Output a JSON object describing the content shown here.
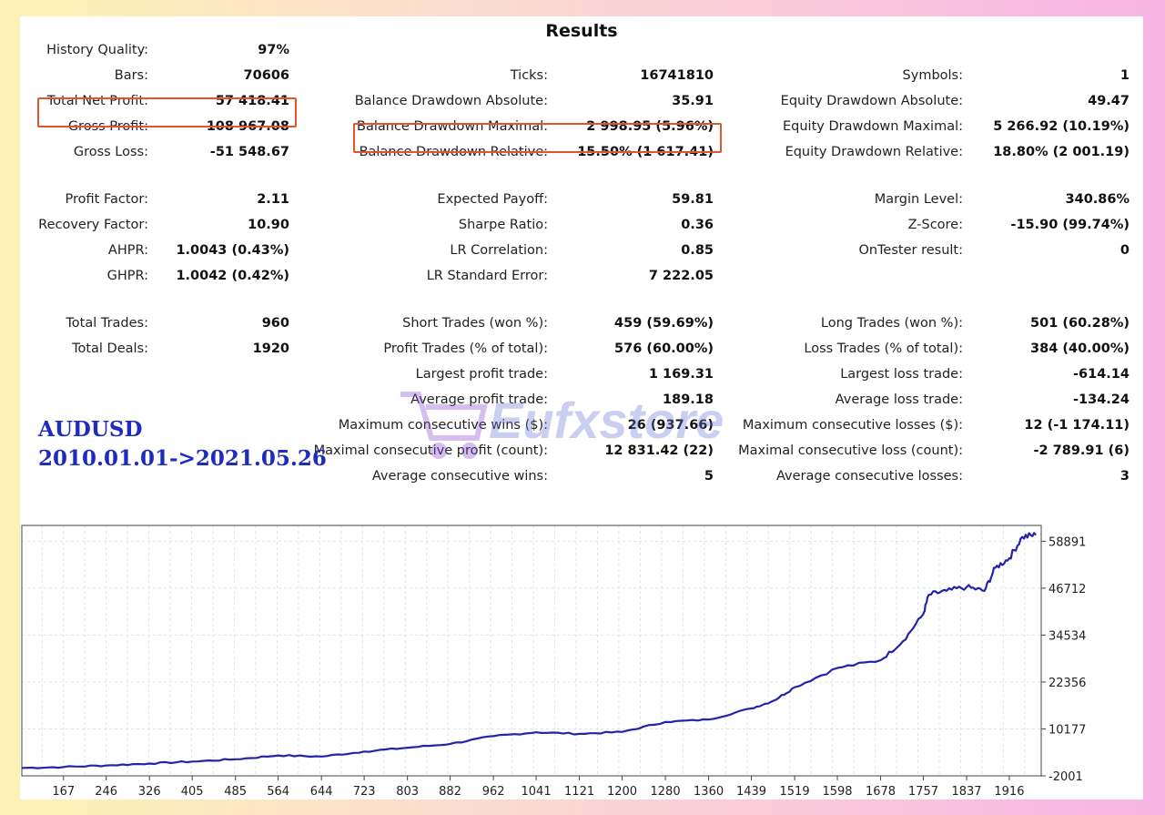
{
  "title": "Results",
  "col1": [
    {
      "label": "History Quality:",
      "value": "97%",
      "row": 0
    },
    {
      "label": "Bars:",
      "value": "70606",
      "row": 1
    },
    {
      "label": "Total Net Profit:",
      "value": "57 418.41",
      "row": 2
    },
    {
      "label": "Gross Profit:",
      "value": "108 967.08",
      "row": 3
    },
    {
      "label": "Gross Loss:",
      "value": "-51 548.67",
      "row": 4
    },
    {
      "label": "Profit Factor:",
      "value": "2.11",
      "row": 6
    },
    {
      "label": "Recovery Factor:",
      "value": "10.90",
      "row": 7
    },
    {
      "label": "AHPR:",
      "value": "1.0043 (0.43%)",
      "row": 8
    },
    {
      "label": "GHPR:",
      "value": "1.0042 (0.42%)",
      "row": 9
    },
    {
      "label": "Total Trades:",
      "value": "960",
      "row": 11
    },
    {
      "label": "Total Deals:",
      "value": "1920",
      "row": 12
    }
  ],
  "col2": [
    {
      "label": "Ticks:",
      "value": "16741810",
      "row": 1
    },
    {
      "label": "Balance Drawdown Absolute:",
      "value": "35.91",
      "row": 2
    },
    {
      "label": "Balance Drawdown Maximal:",
      "value": "2 998.95 (5.96%)",
      "row": 3
    },
    {
      "label": "Balance Drawdown Relative:",
      "value": "15.50% (1 617.41)",
      "row": 4
    },
    {
      "label": "Expected Payoff:",
      "value": "59.81",
      "row": 6
    },
    {
      "label": "Sharpe Ratio:",
      "value": "0.36",
      "row": 7
    },
    {
      "label": "LR Correlation:",
      "value": "0.85",
      "row": 8
    },
    {
      "label": "LR Standard Error:",
      "value": "7 222.05",
      "row": 9
    },
    {
      "label": "Short Trades (won %):",
      "value": "459 (59.69%)",
      "row": 11
    },
    {
      "label": "Profit Trades (% of total):",
      "value": "576 (60.00%)",
      "row": 12
    },
    {
      "label": "Largest profit trade:",
      "value": "1 169.31",
      "row": 13
    },
    {
      "label": "Average profit trade:",
      "value": "189.18",
      "row": 14
    },
    {
      "label": "Maximum consecutive wins ($):",
      "value": "26 (937.66)",
      "row": 15
    },
    {
      "label": "Maximal consecutive profit (count):",
      "value": "12 831.42 (22)",
      "row": 16
    },
    {
      "label": "Average consecutive wins:",
      "value": "5",
      "row": 17
    }
  ],
  "col3": [
    {
      "label": "Symbols:",
      "value": "1",
      "row": 1
    },
    {
      "label": "Equity Drawdown Absolute:",
      "value": "49.47",
      "row": 2
    },
    {
      "label": "Equity Drawdown Maximal:",
      "value": "5 266.92 (10.19%)",
      "row": 3
    },
    {
      "label": "Equity Drawdown Relative:",
      "value": "18.80% (2 001.19)",
      "row": 4
    },
    {
      "label": "Margin Level:",
      "value": "340.86%",
      "row": 6
    },
    {
      "label": "Z-Score:",
      "value": "-15.90 (99.74%)",
      "row": 7
    },
    {
      "label": "OnTester result:",
      "value": "0",
      "row": 8
    },
    {
      "label": "Long Trades (won %):",
      "value": "501 (60.28%)",
      "row": 11
    },
    {
      "label": "Loss Trades (% of total):",
      "value": "384 (40.00%)",
      "row": 12
    },
    {
      "label": "Largest loss trade:",
      "value": "-614.14",
      "row": 13
    },
    {
      "label": "Average loss trade:",
      "value": "-134.24",
      "row": 14
    },
    {
      "label": "Maximum consecutive losses ($):",
      "value": "12 (-1 174.11)",
      "row": 15
    },
    {
      "label": "Maximal consecutive loss (count):",
      "value": "-2 789.91 (6)",
      "row": 16
    },
    {
      "label": "Average consecutive losses:",
      "value": "3",
      "row": 17
    }
  ],
  "symbol_label": "AUDUSD",
  "date_range_label": "2010.01.01->2021.05.26",
  "watermark": "Eufxstore",
  "colors": {
    "line": "#2424a8",
    "highlight": "#e0562c",
    "annotation": "#1f2bbf"
  },
  "chart_data": {
    "type": "line",
    "x_ticks": [
      167,
      246,
      326,
      405,
      485,
      564,
      644,
      723,
      803,
      882,
      962,
      1041,
      1121,
      1200,
      1280,
      1360,
      1439,
      1519,
      1598,
      1678,
      1757,
      1837,
      1916
    ],
    "y_ticks": [
      58891,
      46712,
      34534,
      22356,
      10177,
      -2001
    ],
    "xlim": [
      90,
      1975
    ],
    "ylim": [
      -2001,
      63000
    ],
    "grid": true,
    "series": [
      {
        "values": [
          [
            90,
            50
          ],
          [
            167,
            300
          ],
          [
            246,
            700
          ],
          [
            326,
            1200
          ],
          [
            405,
            1700
          ],
          [
            485,
            2300
          ],
          [
            564,
            3300
          ],
          [
            644,
            3000
          ],
          [
            723,
            4300
          ],
          [
            803,
            5300
          ],
          [
            882,
            6300
          ],
          [
            962,
            8300
          ],
          [
            1041,
            9300
          ],
          [
            1121,
            8900
          ],
          [
            1200,
            9400
          ],
          [
            1280,
            12000
          ],
          [
            1360,
            12600
          ],
          [
            1439,
            15500
          ],
          [
            1480,
            17500
          ],
          [
            1519,
            21000
          ],
          [
            1598,
            26000
          ],
          [
            1678,
            28000
          ],
          [
            1720,
            33000
          ],
          [
            1757,
            40000
          ],
          [
            1767,
            45000
          ],
          [
            1800,
            46000
          ],
          [
            1837,
            47000
          ],
          [
            1870,
            46000
          ],
          [
            1890,
            52000
          ],
          [
            1916,
            54500
          ],
          [
            1940,
            60000
          ],
          [
            1965,
            60500
          ]
        ]
      }
    ]
  }
}
